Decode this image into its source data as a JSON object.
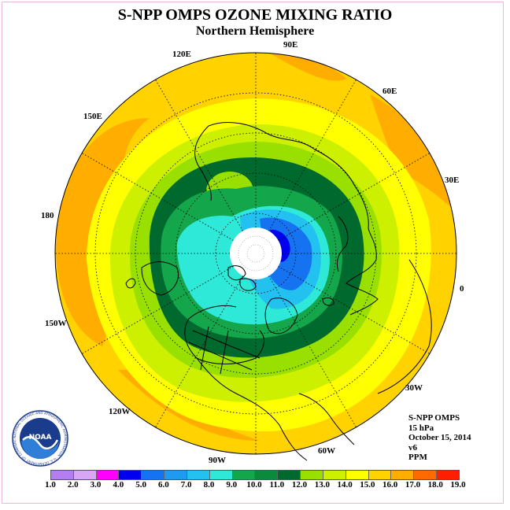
{
  "title": "S-NPP OMPS OZONE MIXING RATIO",
  "subtitle": "Northern Hemisphere",
  "longitude_labels": {
    "lon_90e": "90E",
    "lon_60e": "60E",
    "lon_30e": "30E",
    "lon_0": "0",
    "lon_30w": "30W",
    "lon_60w": "60W",
    "lon_90w": "90W",
    "lon_120w": "120W",
    "lon_150w": "150W",
    "lon_180": "180",
    "lon_150e": "150E",
    "lon_120e": "120E"
  },
  "info": {
    "instrument": "S-NPP OMPS",
    "level": "15 hPa",
    "date": "October 15, 2014",
    "version": "v6",
    "units": "PPM"
  },
  "logo": {
    "text": "NOAA",
    "ring_text": "NATIONAL OCEANIC AND ATMOSPHERIC ADMINISTRATION · U.S. DEPARTMENT OF COMMERCE"
  },
  "colorbar": {
    "labels": [
      "1.0",
      "2.0",
      "3.0",
      "4.0",
      "5.0",
      "6.0",
      "7.0",
      "8.0",
      "9.0",
      "10.0",
      "11.0",
      "12.0",
      "13.0",
      "14.0",
      "15.0",
      "16.0",
      "17.0",
      "18.0",
      "19.0"
    ],
    "colors": [
      "#b57ef0",
      "#d9a6f5",
      "#ff00ff",
      "#0000ee",
      "#1573f2",
      "#1e9bf0",
      "#23c1f0",
      "#2ee8d8",
      "#13a64a",
      "#0a8a3a",
      "#006a2e",
      "#99e000",
      "#ccf000",
      "#ffff00",
      "#ffd200",
      "#ffae00",
      "#ff6a00",
      "#ff1e00",
      "#8b4c2f"
    ]
  }
}
